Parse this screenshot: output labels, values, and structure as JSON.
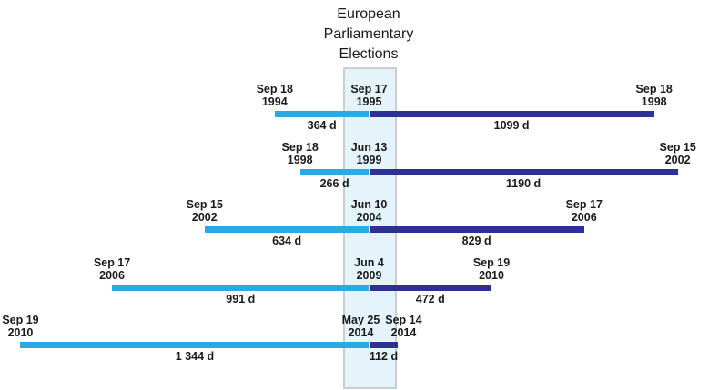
{
  "title": {
    "lines": [
      "European",
      "Parliamentary",
      "Elections"
    ]
  },
  "colors": {
    "pre_bar": "#29abe2",
    "post_bar": "#2e3192",
    "band_fill": "#e5f3fb",
    "band_border": "#c9ced3",
    "text": "#1a1a1a"
  },
  "chart_data": {
    "type": "timeline",
    "title": "European Parliamentary Elections",
    "unit": "days",
    "layout": {
      "orientation": "horizontal rows aligned on election date",
      "band": "vertical highlight band marks the European Parliamentary election dates",
      "bar_before_color": "#29abe2",
      "bar_after_color": "#2e3192"
    },
    "rows": [
      {
        "start_date": [
          "Sep 18",
          "1994"
        ],
        "election_date": [
          "Sep 17",
          "1995"
        ],
        "end_date": [
          "Sep 18",
          "1998"
        ],
        "days_before": 364,
        "days_before_label": "364 d",
        "days_after": 1099,
        "days_after_label": "1099 d"
      },
      {
        "start_date": [
          "Sep 18",
          "1998"
        ],
        "election_date": [
          "Jun 13",
          "1999"
        ],
        "end_date": [
          "Sep 15",
          "2002"
        ],
        "days_before": 266,
        "days_before_label": "266 d",
        "days_after": 1190,
        "days_after_label": "1190 d"
      },
      {
        "start_date": [
          "Sep 15",
          "2002"
        ],
        "election_date": [
          "Jun 10",
          "2004"
        ],
        "end_date": [
          "Sep 17",
          "2006"
        ],
        "days_before": 634,
        "days_before_label": "634 d",
        "days_after": 829,
        "days_after_label": "829 d"
      },
      {
        "start_date": [
          "Sep 17",
          "2006"
        ],
        "election_date": [
          "Jun 4",
          "2009"
        ],
        "end_date": [
          "Sep 19",
          "2010"
        ],
        "days_before": 991,
        "days_before_label": "991 d",
        "days_after": 472,
        "days_after_label": "472 d"
      },
      {
        "start_date": [
          "Sep 19",
          "2010"
        ],
        "election_date": [
          "May 25",
          "2014"
        ],
        "end_date": [
          "Sep 14",
          "2014"
        ],
        "days_before": 1344,
        "days_before_label": "1 344 d",
        "days_after": 112,
        "days_after_label": "112 d"
      }
    ]
  }
}
